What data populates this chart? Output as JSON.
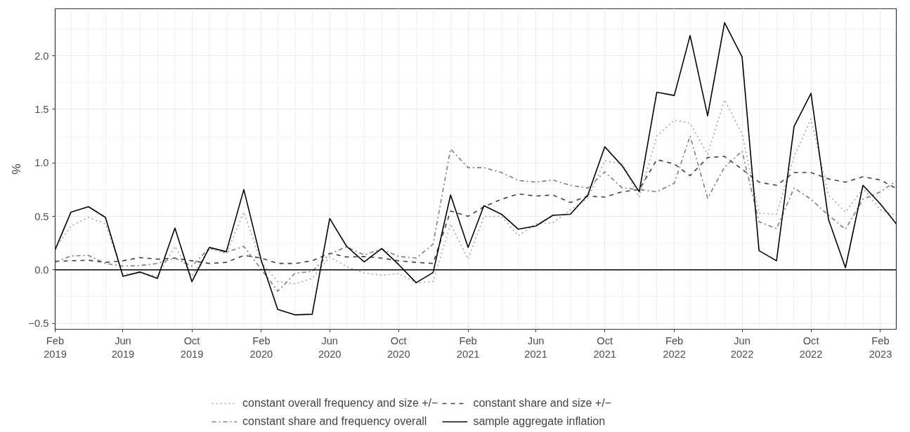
{
  "chart_data": {
    "type": "line",
    "ylabel": "%",
    "x": [
      "2019-02",
      "2019-03",
      "2019-04",
      "2019-05",
      "2019-06",
      "2019-07",
      "2019-08",
      "2019-09",
      "2019-10",
      "2019-11",
      "2019-12",
      "2020-01",
      "2020-02",
      "2020-03",
      "2020-04",
      "2020-05",
      "2020-06",
      "2020-07",
      "2020-08",
      "2020-09",
      "2020-10",
      "2020-11",
      "2020-12",
      "2021-01",
      "2021-02",
      "2021-03",
      "2021-04",
      "2021-05",
      "2021-06",
      "2021-07",
      "2021-08",
      "2021-09",
      "2021-10",
      "2021-11",
      "2021-12",
      "2022-01",
      "2022-02",
      "2022-03",
      "2022-04",
      "2022-05",
      "2022-06",
      "2022-07",
      "2022-08",
      "2022-09",
      "2022-10",
      "2022-11",
      "2022-12",
      "2023-01",
      "2023-02",
      "2023-03"
    ],
    "series": [
      {
        "name": "constant overall frequency and size +/−",
        "color": "#a6a6a6",
        "line_style": "dotted",
        "values": [
          0.2,
          0.41,
          0.49,
          0.43,
          -0.04,
          -0.03,
          -0.06,
          0.22,
          -0.06,
          0.2,
          0.15,
          0.54,
          0.07,
          -0.11,
          -0.13,
          -0.08,
          0.12,
          0.03,
          -0.03,
          -0.05,
          -0.035,
          -0.12,
          -0.11,
          0.43,
          0.1,
          0.5,
          0.5,
          0.32,
          0.43,
          0.44,
          0.56,
          0.67,
          1.02,
          0.99,
          0.68,
          1.25,
          1.4,
          1.37,
          1.08,
          1.59,
          1.27,
          0.53,
          0.52,
          1.06,
          1.41,
          0.7,
          0.54,
          0.76,
          0.56,
          0.51
        ]
      },
      {
        "name": "constant share and size +/−",
        "color": "#404040",
        "line_style": "dashed",
        "values": [
          0.08,
          0.085,
          0.09,
          0.07,
          0.085,
          0.115,
          0.1,
          0.11,
          0.085,
          0.06,
          0.07,
          0.135,
          0.11,
          0.06,
          0.06,
          0.085,
          0.155,
          0.12,
          0.125,
          0.11,
          0.085,
          0.07,
          0.06,
          0.55,
          0.5,
          0.59,
          0.66,
          0.71,
          0.69,
          0.7,
          0.63,
          0.69,
          0.68,
          0.73,
          0.75,
          1.03,
          0.99,
          0.88,
          1.05,
          1.06,
          0.94,
          0.82,
          0.79,
          0.91,
          0.91,
          0.85,
          0.82,
          0.87,
          0.84,
          0.76
        ]
      },
      {
        "name": "constant share and frequency overall",
        "color": "#7f7f7f",
        "line_style": "dashdot",
        "values": [
          0.07,
          0.13,
          0.135,
          0.06,
          0.035,
          0.04,
          0.06,
          0.11,
          0.035,
          0.205,
          0.165,
          0.22,
          0.005,
          -0.2,
          -0.03,
          -0.015,
          0.15,
          0.215,
          0.14,
          0.195,
          0.125,
          0.11,
          0.24,
          1.13,
          0.955,
          0.955,
          0.91,
          0.835,
          0.82,
          0.84,
          0.79,
          0.765,
          0.915,
          0.765,
          0.75,
          0.73,
          0.81,
          1.25,
          0.67,
          0.96,
          1.11,
          0.45,
          0.385,
          0.765,
          0.66,
          0.51,
          0.38,
          0.66,
          0.73,
          0.83
        ]
      },
      {
        "name": "sample aggregate inflation",
        "color": "#000000",
        "line_style": "solid",
        "values": [
          0.19,
          0.54,
          0.59,
          0.49,
          -0.06,
          -0.02,
          -0.08,
          0.39,
          -0.11,
          0.21,
          0.17,
          0.75,
          0.085,
          -0.37,
          -0.42,
          -0.415,
          0.48,
          0.22,
          0.075,
          0.2,
          0.05,
          -0.12,
          -0.025,
          0.7,
          0.21,
          0.6,
          0.52,
          0.38,
          0.41,
          0.51,
          0.52,
          0.7,
          1.15,
          0.97,
          0.73,
          1.66,
          1.63,
          2.19,
          1.44,
          2.31,
          1.99,
          0.18,
          0.085,
          1.34,
          1.65,
          0.47,
          0.02,
          0.79,
          0.615,
          0.43
        ]
      }
    ],
    "xlim": [
      "2019-02",
      "2023-03"
    ],
    "xticks": [
      {
        "value": "2019-02",
        "label": "Feb\n2019"
      },
      {
        "value": "2019-06",
        "label": "Jun\n2019"
      },
      {
        "value": "2019-10",
        "label": "Oct\n2019"
      },
      {
        "value": "2020-02",
        "label": "Feb\n2020"
      },
      {
        "value": "2020-06",
        "label": "Jun\n2020"
      },
      {
        "value": "2020-10",
        "label": "Oct\n2020"
      },
      {
        "value": "2021-02",
        "label": "Feb\n2021"
      },
      {
        "value": "2021-06",
        "label": "Jun\n2021"
      },
      {
        "value": "2021-10",
        "label": "Oct\n2021"
      },
      {
        "value": "2022-02",
        "label": "Feb\n2022"
      },
      {
        "value": "2022-06",
        "label": "Jun\n2022"
      },
      {
        "value": "2022-10",
        "label": "Oct\n2022"
      },
      {
        "value": "2023-02",
        "label": "Feb\n2023"
      }
    ],
    "ylim": [
      -0.555,
      2.44
    ],
    "yticks": [
      {
        "value": -0.5,
        "label": "−0.5"
      },
      {
        "value": 0,
        "label": "0.0"
      },
      {
        "value": 0.5,
        "label": "0.5"
      },
      {
        "value": 1,
        "label": "1.0"
      },
      {
        "value": 1.5,
        "label": "1.5"
      },
      {
        "value": 2,
        "label": "2.0"
      }
    ],
    "ref_lines": [
      {
        "axis": "y",
        "value": 0,
        "color": "#000000",
        "line_style": "solid"
      }
    ],
    "grid": true,
    "legend": "bottom"
  }
}
